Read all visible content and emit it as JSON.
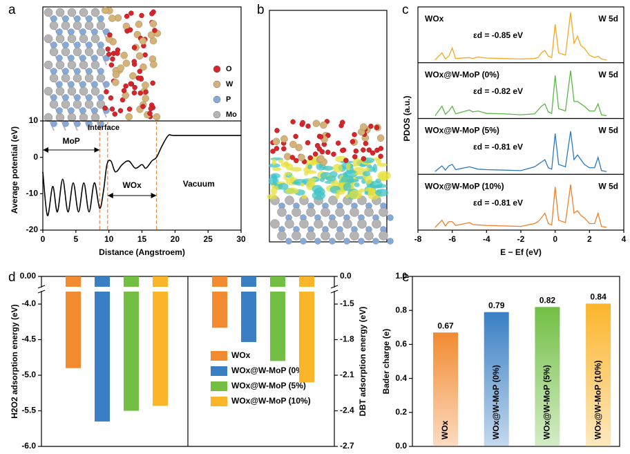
{
  "panel_labels": [
    "a",
    "b",
    "c",
    "d",
    "e"
  ],
  "chart_data": [
    {
      "type": "line",
      "xlabel": "Distance (Angstroem)",
      "ylabel": "Average potential (eV)",
      "xlim": [
        0,
        30
      ],
      "xticks": [
        0,
        5,
        10,
        15,
        20,
        25,
        30
      ],
      "ylim": [
        -20,
        10
      ],
      "yticks": [
        -20,
        -10,
        0,
        10
      ],
      "x": [
        0,
        0.7,
        1.5,
        2.2,
        3,
        3.8,
        4.6,
        5.4,
        6.2,
        7,
        7.8,
        8.6,
        9.2,
        9.7,
        10.3,
        11,
        12,
        13,
        14,
        15,
        15.6,
        16.5,
        17.2,
        18,
        19,
        20,
        25,
        30
      ],
      "values": [
        -4,
        -16,
        -8,
        -15,
        -6,
        -15,
        -7,
        -15,
        -7,
        -15,
        -7,
        -14,
        -9,
        -2,
        -1,
        -4,
        -2,
        -1,
        -3,
        -2,
        -3,
        -1,
        0,
        3,
        6,
        6,
        6,
        6
      ],
      "color": "#000000",
      "vlines": [
        8.6,
        9.8,
        17.2
      ],
      "vline_color": "#f08a4b",
      "annotations": [
        "MoP",
        "Interface",
        "WOx",
        "Vacuum"
      ],
      "atom_legend": [
        {
          "label": "O",
          "color": "#d7262b"
        },
        {
          "label": "W",
          "color": "#d4b37a"
        },
        {
          "label": "P",
          "color": "#87a9d6"
        },
        {
          "label": "Mo",
          "color": "#b5b5b5"
        }
      ]
    },
    {
      "type": "line",
      "xlabel": "E − Ef (eV)",
      "ylabel": "PDOS (a.u.)",
      "xlim": [
        -8,
        4
      ],
      "xticks": [
        -8,
        -6,
        -4,
        -2,
        0,
        2,
        4
      ],
      "ylim": [
        0,
        1
      ],
      "x": [
        -7,
        -6.6,
        -6.4,
        -6.2,
        -6,
        -5.8,
        -5,
        -4.8,
        -4.5,
        -4,
        -3,
        -2,
        -1.2,
        -1,
        -0.8,
        -0.6,
        -0.4,
        -0.2,
        0,
        0.2,
        0.6,
        0.9,
        1.1,
        1.3,
        1.5,
        1.7,
        2,
        2.3,
        2.5,
        2.7,
        3
      ],
      "series": [
        {
          "name": "WOx",
          "orbital": "W 5d",
          "annotation": "εd = -0.85 eV",
          "color": "#f5a623",
          "values": [
            0,
            0.15,
            0.02,
            0.08,
            0.25,
            0.03,
            0.05,
            0.03,
            0.06,
            0.04,
            0.03,
            0.02,
            0.03,
            0.05,
            0.15,
            0.2,
            0.08,
            0.05,
            0.75,
            0.15,
            0.1,
            1.0,
            0.35,
            0.5,
            0.3,
            0.25,
            0.1,
            0.05,
            0.08,
            0.02,
            0
          ]
        },
        {
          "name": "WOx@W-MoP (0%)",
          "orbital": "W 5d",
          "annotation": "εd = -0.82 eV",
          "color": "#5cb646",
          "values": [
            0,
            0.2,
            0.03,
            0.1,
            0.2,
            0.04,
            0.12,
            0.08,
            0.1,
            0.05,
            0.04,
            0.02,
            0.04,
            0.12,
            0.2,
            0.25,
            0.08,
            0.05,
            0.85,
            0.15,
            0.1,
            0.95,
            0.3,
            0.3,
            0.25,
            0.2,
            0.1,
            0.1,
            0.25,
            0.02,
            0
          ]
        },
        {
          "name": "WOx@W-MoP (5%)",
          "orbital": "W 5d",
          "annotation": "εd = -0.81 eV",
          "color": "#2b78bd",
          "values": [
            0,
            0.12,
            0.03,
            0.12,
            0.15,
            0.04,
            0.1,
            0.08,
            0.05,
            0.04,
            0.03,
            0.02,
            0.1,
            0.15,
            0.2,
            0.25,
            0.08,
            0.05,
            0.8,
            0.15,
            0.1,
            0.85,
            0.25,
            0.35,
            0.25,
            0.15,
            0.08,
            0.08,
            0.3,
            0.02,
            0
          ]
        },
        {
          "name": "WOx@W-MoP (10%)",
          "orbital": "W 5d",
          "annotation": "εd = -0.81 eV",
          "color": "#f07f2a",
          "values": [
            0,
            0.15,
            0.03,
            0.12,
            0.12,
            0.04,
            0.1,
            0.06,
            0.05,
            0.04,
            0.03,
            0.02,
            0.08,
            0.12,
            0.2,
            0.3,
            0.08,
            0.05,
            0.85,
            0.15,
            0.1,
            0.9,
            0.3,
            0.35,
            0.25,
            0.2,
            0.08,
            0.08,
            0.3,
            0.02,
            0
          ]
        }
      ]
    },
    {
      "type": "bar",
      "ylabel": "H2O2 adsorption energy (eV)",
      "y2label": "DBT adsorption energy (eV)",
      "ylim": [
        -6,
        0
      ],
      "yticks": [
        {
          "value": 0,
          "label": "0.00"
        },
        {
          "value": -4,
          "label": "-4.0"
        },
        -4.5,
        {
          "value": -5,
          "label": "-5.0"
        },
        -5.5,
        {
          "value": -6,
          "label": "-6.0"
        }
      ],
      "y2lim": [
        -2.7,
        0
      ],
      "y2ticks": [
        {
          "value": 0,
          "label": "0.0"
        },
        -1.5,
        -1.8,
        -2.1,
        -2.4,
        -2.7
      ],
      "axis_break": true,
      "axes": [
        "y",
        "y2"
      ],
      "series": [
        {
          "name": "WOx",
          "color": "#f28a30",
          "values": [
            -4.9,
            -1.7
          ]
        },
        {
          "name": "WOx@W-MoP (0%)",
          "color": "#3a7fc4",
          "values": [
            -5.65,
            -1.82
          ]
        },
        {
          "name": "WOx@W-MoP (5%)",
          "color": "#72bf44",
          "values": [
            -5.5,
            -1.98
          ]
        },
        {
          "name": "WOx@W-MoP (10%)",
          "color": "#fbb52b",
          "values": [
            -5.43,
            -2.16
          ]
        }
      ]
    },
    {
      "type": "bar",
      "ylabel": "Bader charge (e)",
      "ylim": [
        0,
        1
      ],
      "yticks": [
        {
          "value": 0,
          "label": "0.0"
        },
        0.2,
        0.4,
        0.6,
        0.8,
        {
          "value": 1,
          "label": "1.0"
        }
      ],
      "categories": [
        "WOx",
        "WOx@W-MoP (0%)",
        "WOx@W-MoP (5%)",
        "WOx@W-MoP (10%)"
      ],
      "values": [
        0.67,
        0.79,
        0.82,
        0.84
      ],
      "colors": [
        "#f28a30",
        "#3a7fc4",
        "#72bf44",
        "#fbb52b"
      ]
    }
  ]
}
